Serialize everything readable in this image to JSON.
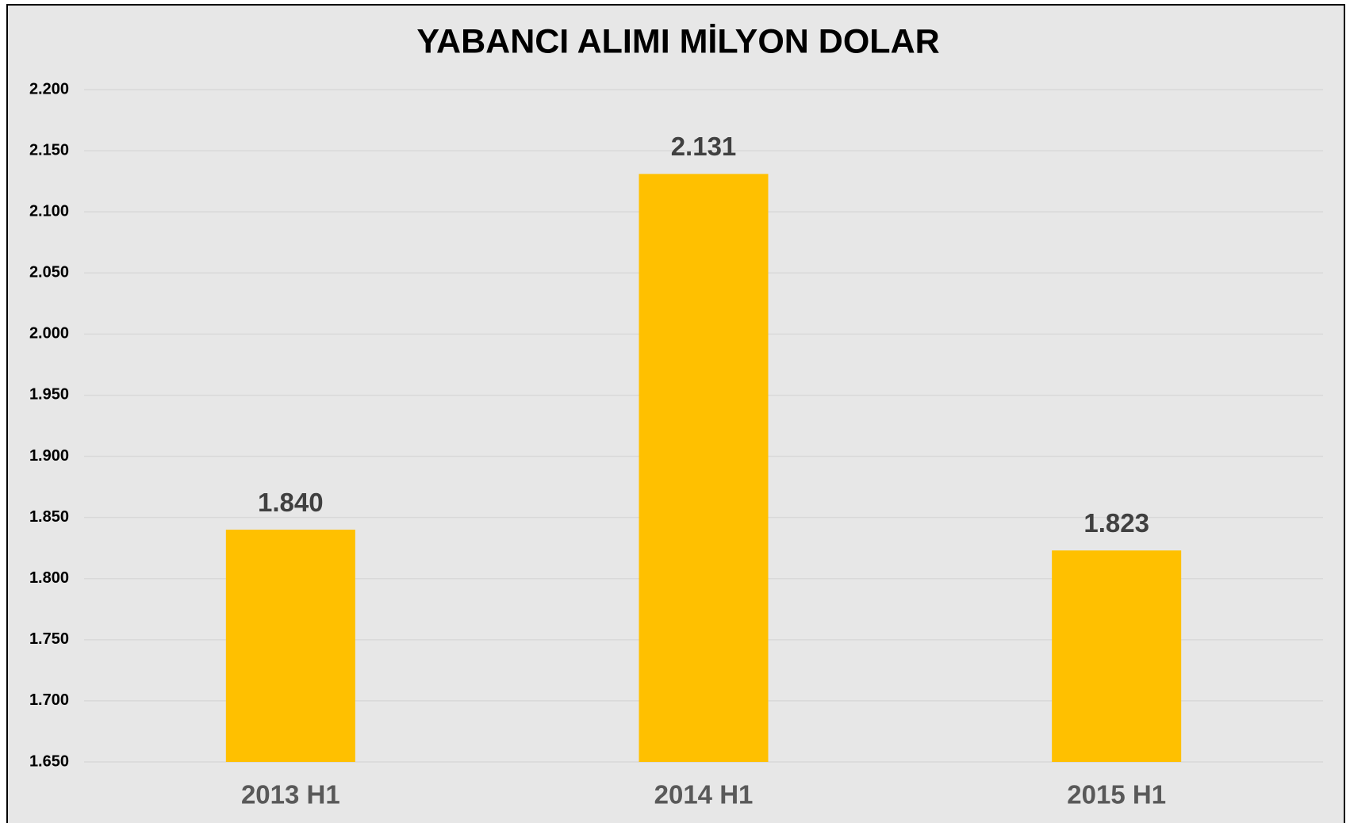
{
  "chart_data": {
    "type": "bar",
    "title": "YABANCI ALIMI MİLYON DOLAR",
    "categories": [
      "2013 H1",
      "2014 H1",
      "2015 H1"
    ],
    "values": [
      1840,
      2131,
      1823
    ],
    "value_labels": [
      "1.840",
      "2.131",
      "1.823"
    ],
    "color": "#ffc000",
    "ylim": [
      1650,
      2200
    ],
    "yticks": [
      {
        "value": 1650,
        "label": "1.650"
      },
      {
        "value": 1700,
        "label": "1.700"
      },
      {
        "value": 1750,
        "label": "1.750"
      },
      {
        "value": 1800,
        "label": "1.800"
      },
      {
        "value": 1850,
        "label": "1.850"
      },
      {
        "value": 1900,
        "label": "1.900"
      },
      {
        "value": 1950,
        "label": "1.950"
      },
      {
        "value": 2000,
        "label": "2.000"
      },
      {
        "value": 2050,
        "label": "2.050"
      },
      {
        "value": 2100,
        "label": "2.100"
      },
      {
        "value": 2150,
        "label": "2.150"
      },
      {
        "value": 2200,
        "label": "2.200"
      }
    ],
    "grid": true
  }
}
